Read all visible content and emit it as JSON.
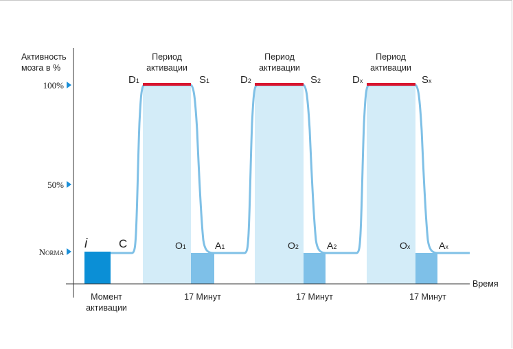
{
  "y_axis": {
    "title_line1": "Активность",
    "title_line2": "мозга в %",
    "ticks": [
      {
        "label": "100%",
        "level": 100
      },
      {
        "label": "50%",
        "level": 50
      },
      {
        "label": "Norma",
        "level": 0
      }
    ]
  },
  "x_axis": {
    "title": "Время"
  },
  "start": {
    "point_label": "i",
    "rise_label": "C",
    "caption_line1": "Момент",
    "caption_line2": "активации"
  },
  "cycles": [
    {
      "title_line1": "Период",
      "title_line2": "активации",
      "d_letter": "D",
      "d_sub": "1",
      "s_letter": "S",
      "s_sub": "1",
      "o_letter": "O",
      "o_sub": "1",
      "a_letter": "A",
      "a_sub": "1",
      "duration": "17 Минут"
    },
    {
      "title_line1": "Период",
      "title_line2": "активации",
      "d_letter": "D",
      "d_sub": "2",
      "s_letter": "S",
      "s_sub": "2",
      "o_letter": "O",
      "o_sub": "2",
      "a_letter": "A",
      "a_sub": "2",
      "duration": "17 Минут"
    },
    {
      "title_line1": "Период",
      "title_line2": "активации",
      "d_letter": "D",
      "d_sub": "x",
      "s_letter": "S",
      "s_sub": "x",
      "o_letter": "O",
      "o_sub": "x",
      "a_letter": "A",
      "a_sub": "x",
      "duration": "17 Минут"
    }
  ],
  "colors": {
    "curve": "#7fc0e6",
    "period_fill": "#d3ecf8",
    "plateau": "#d9162f",
    "activation_block": "#0b8fd6",
    "recovery_block": "#7ec0e8",
    "tick_marker": "#1a8fd8",
    "axis": "#333333"
  }
}
